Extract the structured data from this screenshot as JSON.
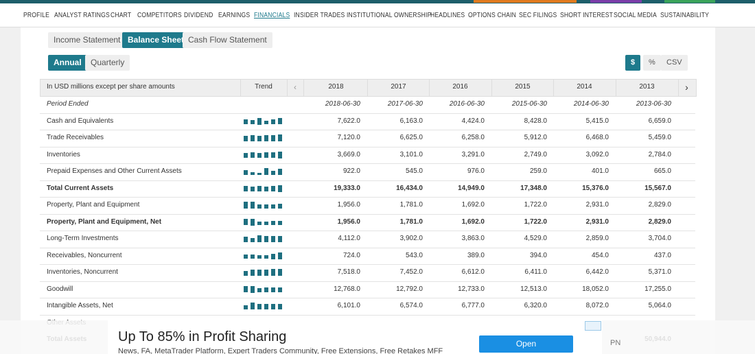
{
  "nav": {
    "items": [
      "PROFILE",
      "ANALYST RATINGS",
      "CHART",
      "COMPETITORS",
      "DIVIDEND",
      "EARNINGS",
      "FINANCIALS",
      "INSIDER TRADES",
      "INSTITUTIONAL OWNERSHIP",
      "HEADLINES",
      "OPTIONS CHAIN",
      "SEC FILINGS",
      "SHORT INTEREST",
      "SOCIAL MEDIA",
      "SUSTAINABILITY"
    ],
    "active": 6
  },
  "statement_tabs": {
    "items": [
      "Income Statement",
      "Balance Sheet",
      "Cash Flow Statement"
    ],
    "active": 1
  },
  "period_tabs": {
    "items": [
      "Annual",
      "Quarterly"
    ],
    "active": 0
  },
  "export_buttons": {
    "items": [
      "$",
      "%",
      "CSV"
    ],
    "active": 0
  },
  "table": {
    "caption": "In USD millions except per share amounts",
    "trend": "Trend",
    "years": [
      "2018",
      "2017",
      "2016",
      "2015",
      "2014",
      "2013"
    ],
    "period_label": "Period Ended",
    "dates": [
      "2018-06-30",
      "2017-06-30",
      "2016-06-30",
      "2015-06-30",
      "2014-06-30",
      "2013-06-30"
    ],
    "rows": [
      {
        "label": "Cash and Equivalents",
        "bold": false,
        "values": [
          "7,622.0",
          "6,163.0",
          "4,424.0",
          "8,428.0",
          "5,415.0",
          "6,659.0"
        ]
      },
      {
        "label": "Trade Receivables",
        "bold": false,
        "values": [
          "7,120.0",
          "6,625.0",
          "6,258.0",
          "5,912.0",
          "6,468.0",
          "5,459.0"
        ]
      },
      {
        "label": "Inventories",
        "bold": false,
        "values": [
          "3,669.0",
          "3,101.0",
          "3,291.0",
          "2,749.0",
          "3,092.0",
          "2,784.0"
        ]
      },
      {
        "label": "Prepaid Expenses and Other Current Assets",
        "bold": false,
        "values": [
          "922.0",
          "545.0",
          "976.0",
          "259.0",
          "401.0",
          "665.0"
        ]
      },
      {
        "label": "Total Current Assets",
        "bold": true,
        "values": [
          "19,333.0",
          "16,434.0",
          "14,949.0",
          "17,348.0",
          "15,376.0",
          "15,567.0"
        ]
      },
      {
        "label": "Property, Plant and Equipment",
        "bold": false,
        "values": [
          "1,956.0",
          "1,781.0",
          "1,692.0",
          "1,722.0",
          "2,931.0",
          "2,829.0"
        ]
      },
      {
        "label": "Property, Plant and Equipment, Net",
        "bold": true,
        "values": [
          "1,956.0",
          "1,781.0",
          "1,692.0",
          "1,722.0",
          "2,931.0",
          "2,829.0"
        ]
      },
      {
        "label": "Long-Term Investments",
        "bold": false,
        "values": [
          "4,112.0",
          "3,902.0",
          "3,863.0",
          "4,529.0",
          "2,859.0",
          "3,704.0"
        ]
      },
      {
        "label": "Receivables, Noncurrent",
        "bold": false,
        "values": [
          "724.0",
          "543.0",
          "389.0",
          "394.0",
          "454.0",
          "437.0"
        ]
      },
      {
        "label": "Inventories, Noncurrent",
        "bold": false,
        "values": [
          "7,518.0",
          "7,452.0",
          "6,612.0",
          "6,411.0",
          "6,442.0",
          "5,371.0"
        ]
      },
      {
        "label": "Goodwill",
        "bold": false,
        "values": [
          "12,768.0",
          "12,792.0",
          "12,733.0",
          "12,513.0",
          "18,052.0",
          "17,255.0"
        ]
      },
      {
        "label": "Intangible Assets, Net",
        "bold": false,
        "values": [
          "6,101.0",
          "6,574.0",
          "6,777.0",
          "6,320.0",
          "8,072.0",
          "5,064.0"
        ]
      }
    ],
    "hidden_rows": [
      {
        "label": "Other Assets"
      },
      {
        "label": "Total Assets",
        "last_value": "50,944.0"
      }
    ]
  },
  "ad": {
    "title": "Up To 85% in Profit Sharing",
    "text": "News, FA, MetaTrader Platform, Expert Traders Community, Free Extensions, Free Retakes MFF",
    "button": "Open",
    "brand": "PN"
  }
}
